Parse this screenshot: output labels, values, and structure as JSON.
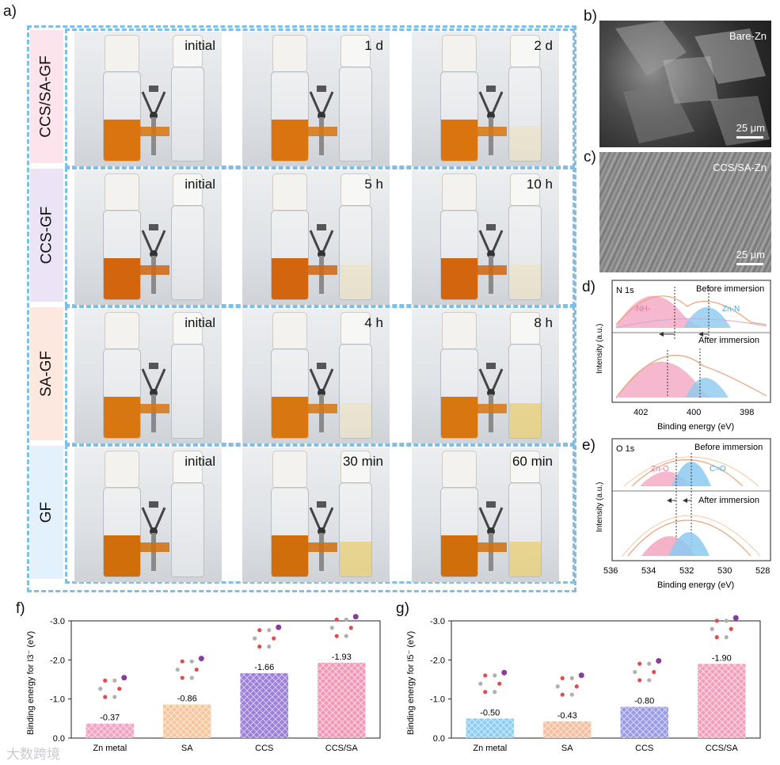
{
  "labels": {
    "a": "a)",
    "b": "b)",
    "c": "c)",
    "d": "d)",
    "e": "e)",
    "f": "f)",
    "g": "g)"
  },
  "rows": [
    {
      "label": "CCS/SA-GF",
      "times": [
        "initial",
        "1 d",
        "2 d"
      ],
      "colors": [
        "#d9740e",
        "#d9740e",
        "#d9740e"
      ],
      "right_tint": [
        "none",
        "none",
        "faint"
      ]
    },
    {
      "label": "CCS-GF",
      "times": [
        "initial",
        "5 h",
        "10 h"
      ],
      "colors": [
        "#d2650e",
        "#d2650e",
        "#d2650e"
      ],
      "right_tint": [
        "none",
        "faint",
        "faint"
      ]
    },
    {
      "label": "SA-GF",
      "times": [
        "initial",
        "4 h",
        "8 h"
      ],
      "colors": [
        "#d8760f",
        "#d8760f",
        "#d8760f"
      ],
      "right_tint": [
        "none",
        "faint",
        "yellow"
      ]
    },
    {
      "label": "GF",
      "times": [
        "initial",
        "30 min",
        "60 min"
      ],
      "colors": [
        "#d06e0c",
        "#d06e0c",
        "#d06e0c"
      ],
      "right_tint": [
        "none",
        "yellow",
        "yellow"
      ]
    }
  ],
  "sem": [
    {
      "label": "Bare-Zn",
      "scale": "25 μm"
    },
    {
      "label": "CCS/SA-Zn",
      "scale": "25 μm"
    }
  ],
  "xps_n": {
    "title": "N 1s",
    "top_note": "Before immersion",
    "bottom_note": "After immersion",
    "peak_left": "-NH-",
    "peak_right": "Zn-N",
    "ylabel": "Intensity (a.u.)",
    "xlabel": "Binding energy (eV)",
    "xticks": [
      "402",
      "400",
      "398"
    ]
  },
  "xps_o": {
    "title": "O 1s",
    "top_note": "Before immersion",
    "bottom_note": "After immersion",
    "peak_left": "Zn-O",
    "peak_right": "C=O",
    "ylabel": "Intensity (a.u.)",
    "xlabel": "Binding energy (eV)",
    "xticks": [
      "536",
      "534",
      "532",
      "530",
      "528"
    ]
  },
  "chart_data": [
    {
      "type": "bar",
      "title": "",
      "ylabel": "Binding energy for I3⁻ (eV)",
      "xlabel": "",
      "categories": [
        "Zn metal",
        "SA",
        "CCS",
        "CCS/SA"
      ],
      "values": [
        -0.37,
        -0.86,
        -1.66,
        -1.93
      ],
      "value_labels": [
        "-0.37",
        "-0.86",
        "-1.66",
        "-1.93"
      ],
      "ylim": [
        0,
        -3.0
      ],
      "yticks": [
        "0.0",
        "-1.0",
        "-2.0",
        "-3.0"
      ],
      "bar_colors": [
        "#f2a3c3",
        "#f6c79d",
        "#9c7fd9",
        "#f19ab8"
      ]
    },
    {
      "type": "bar",
      "title": "",
      "ylabel": "Binding energy for I5⁻ (eV)",
      "xlabel": "",
      "categories": [
        "Zn metal",
        "SA",
        "CCS",
        "CCS/SA"
      ],
      "values": [
        -0.5,
        -0.43,
        -0.8,
        -1.9
      ],
      "value_labels": [
        "-0.50",
        "-0.43",
        "-0.80",
        "-1.90"
      ],
      "ylim": [
        0,
        -3.0
      ],
      "yticks": [
        "0.0",
        "-1.0",
        "-2.0",
        "-3.0"
      ],
      "bar_colors": [
        "#8ecdf0",
        "#f6c0a0",
        "#9c9be6",
        "#f2a1bd"
      ]
    }
  ],
  "watermark": "大数跨境"
}
